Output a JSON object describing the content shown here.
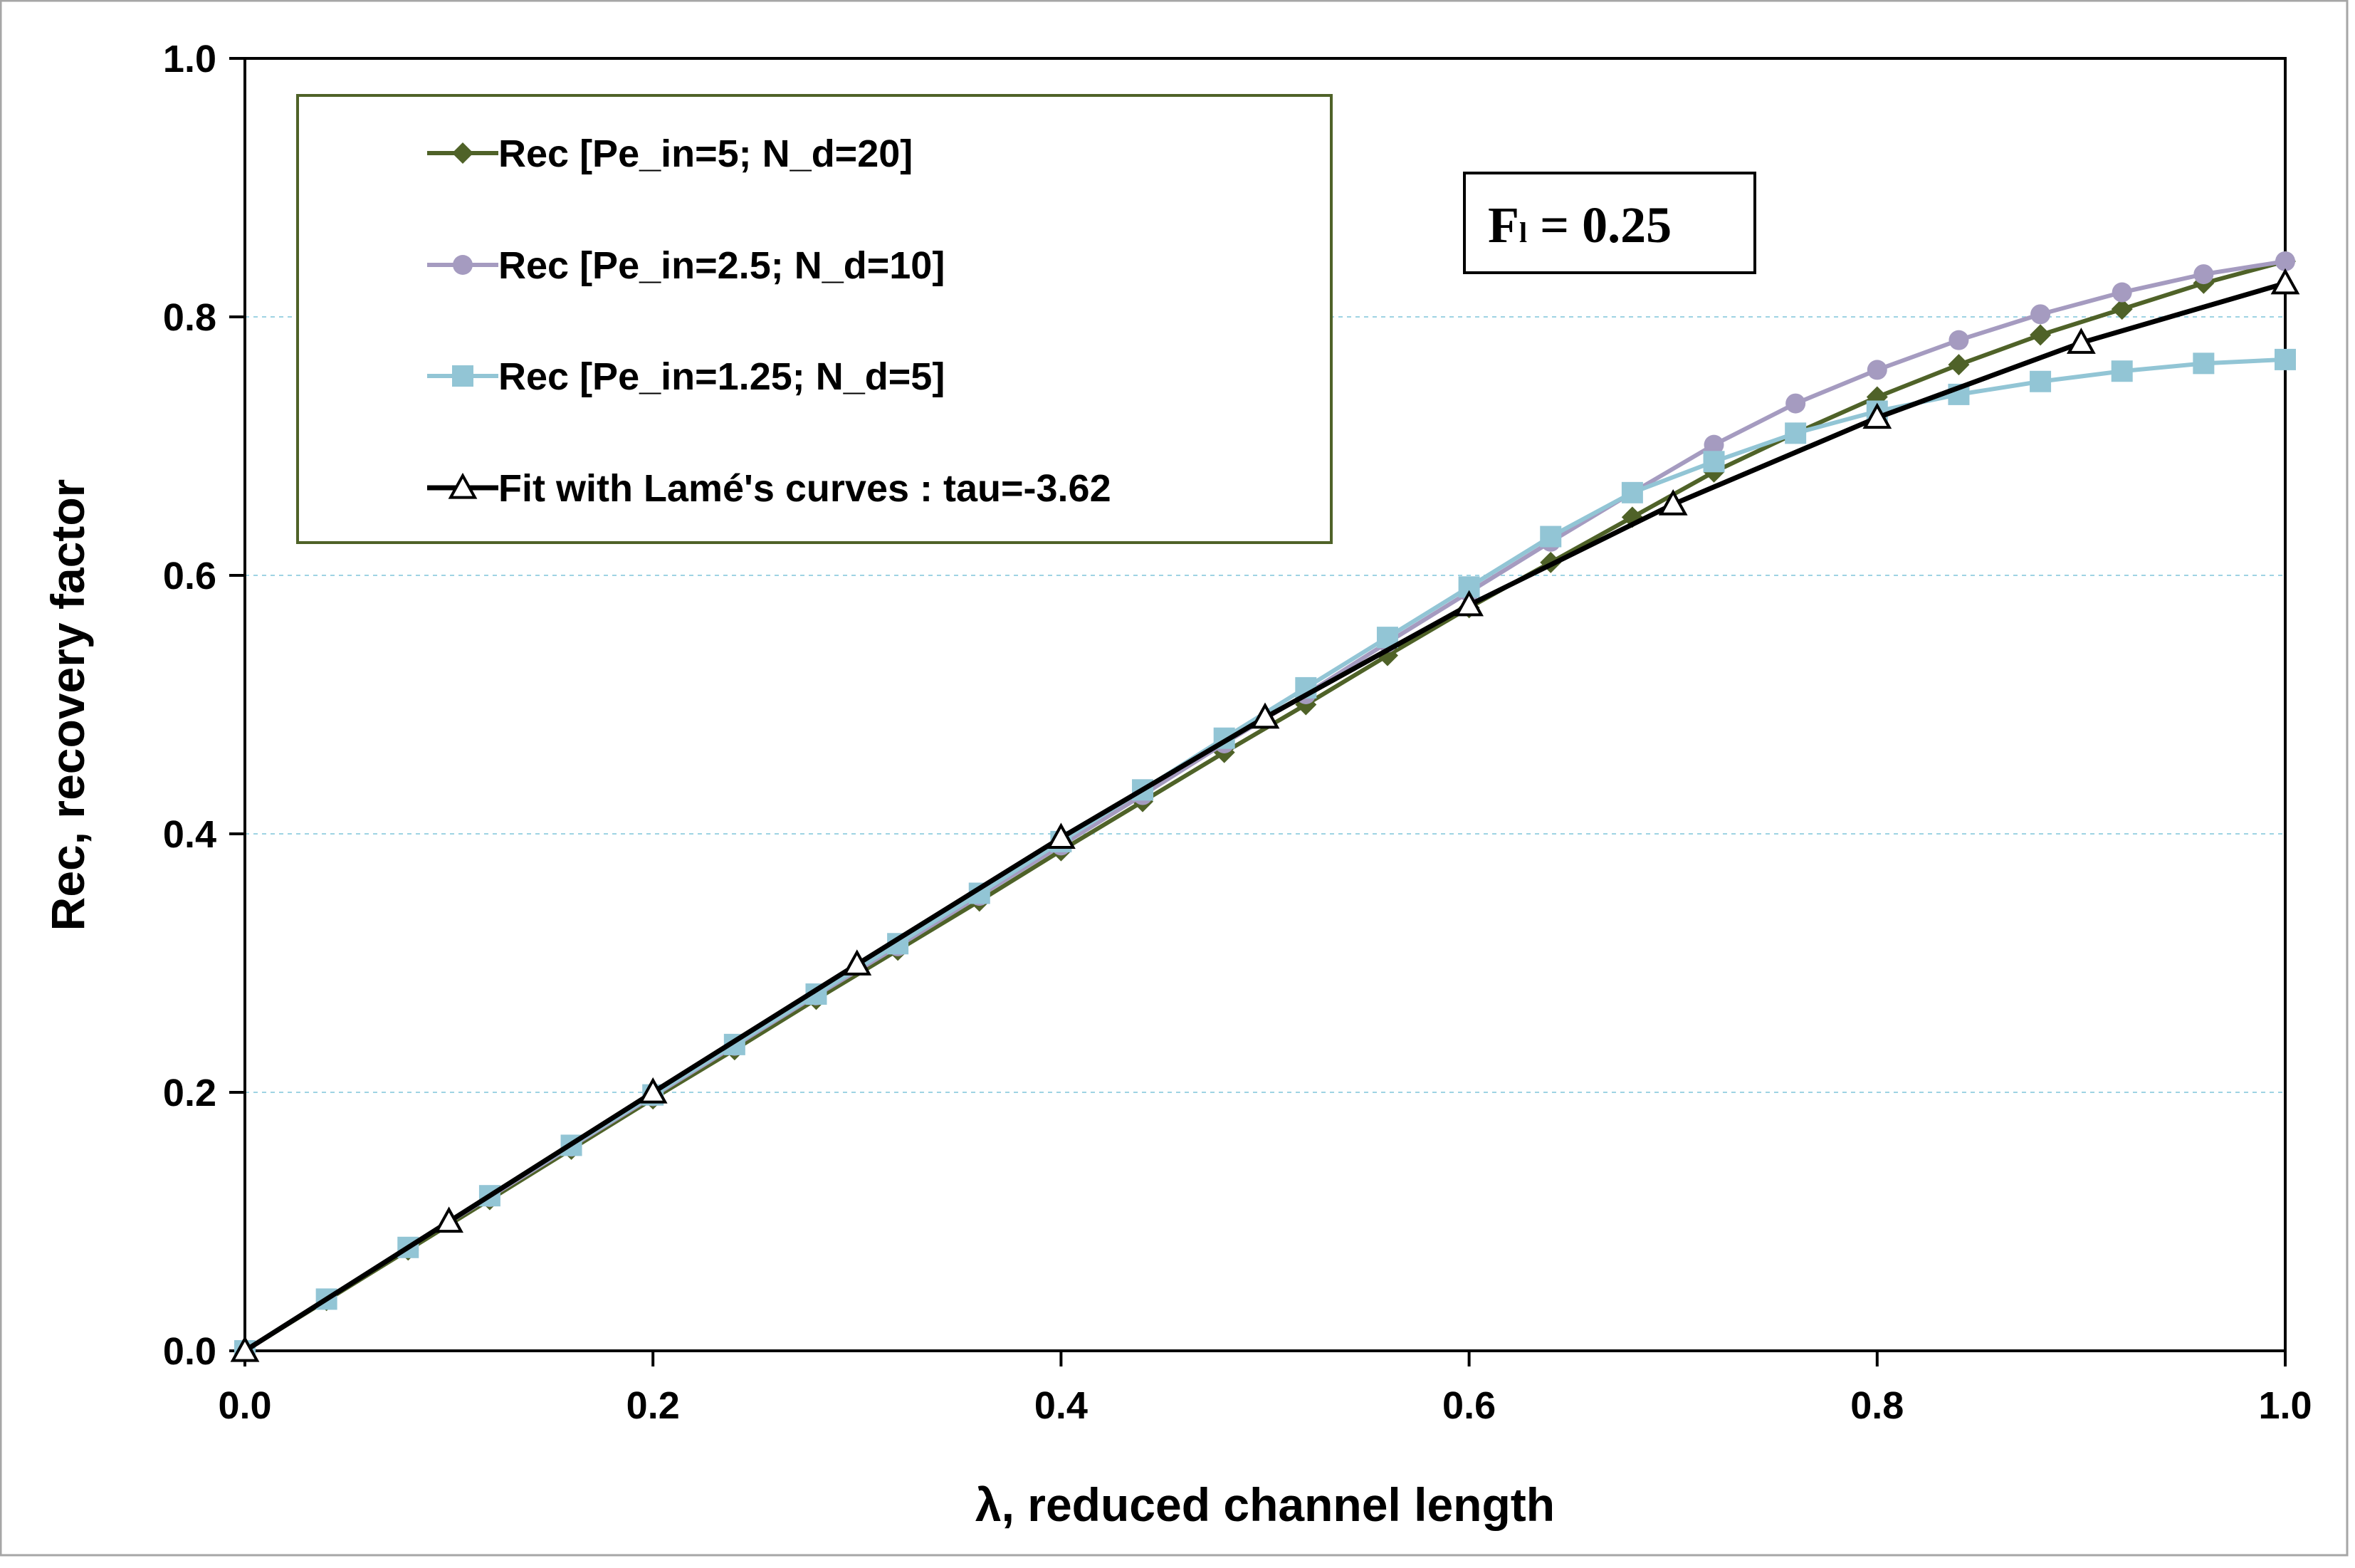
{
  "chart_data": {
    "type": "line",
    "xlabel": "λ, reduced channel length",
    "ylabel": "Rec, recovery factor",
    "xlim": [
      0.0,
      1.0
    ],
    "ylim": [
      0.0,
      1.0
    ],
    "x_ticks": [
      "0.0",
      "0.2",
      "0.4",
      "0.6",
      "0.8",
      "1.0"
    ],
    "y_ticks": [
      "0.0",
      "0.2",
      "0.4",
      "0.6",
      "0.8",
      "1.0"
    ],
    "grid": "horizontal dashed",
    "legend_position": "top-left",
    "annotation": {
      "main": "F",
      "sub": "l",
      "rest": " = 0.25"
    },
    "series": [
      {
        "name": "Rec  [Pe_in=5; N_d=20]",
        "color": "#4f6228",
        "marker": "diamond",
        "x": [
          0,
          0.04,
          0.08,
          0.12,
          0.16,
          0.2,
          0.24,
          0.28,
          0.32,
          0.36,
          0.4,
          0.44,
          0.48,
          0.52,
          0.56,
          0.6,
          0.64,
          0.68,
          0.72,
          0.76,
          0.8,
          0.84,
          0.88,
          0.92,
          0.96,
          1.0
        ],
        "y": [
          0,
          0.039,
          0.078,
          0.117,
          0.156,
          0.195,
          0.233,
          0.272,
          0.31,
          0.348,
          0.387,
          0.425,
          0.463,
          0.5,
          0.538,
          0.575,
          0.61,
          0.645,
          0.68,
          0.71,
          0.738,
          0.763,
          0.786,
          0.806,
          0.826,
          0.843
        ]
      },
      {
        "name": "Rec  [Pe_in=2.5; N_d=10]",
        "color": "#a59bc0",
        "marker": "circle",
        "x": [
          0,
          0.04,
          0.08,
          0.12,
          0.16,
          0.2,
          0.24,
          0.28,
          0.32,
          0.36,
          0.4,
          0.44,
          0.48,
          0.52,
          0.56,
          0.6,
          0.64,
          0.68,
          0.72,
          0.76,
          0.8,
          0.84,
          0.88,
          0.92,
          0.96,
          1.0
        ],
        "y": [
          0,
          0.04,
          0.08,
          0.119,
          0.158,
          0.197,
          0.236,
          0.275,
          0.313,
          0.352,
          0.391,
          0.43,
          0.47,
          0.508,
          0.548,
          0.587,
          0.626,
          0.664,
          0.701,
          0.733,
          0.759,
          0.782,
          0.802,
          0.819,
          0.833,
          0.843
        ]
      },
      {
        "name": "Rec  [Pe_in=1.25; N_d=5]",
        "color": "#92c5d5",
        "marker": "square",
        "x": [
          0,
          0.04,
          0.08,
          0.12,
          0.16,
          0.2,
          0.24,
          0.28,
          0.32,
          0.36,
          0.4,
          0.44,
          0.48,
          0.52,
          0.56,
          0.6,
          0.64,
          0.68,
          0.72,
          0.76,
          0.8,
          0.84,
          0.88,
          0.92,
          0.96,
          1.0
        ],
        "y": [
          0,
          0.04,
          0.08,
          0.12,
          0.159,
          0.198,
          0.237,
          0.276,
          0.315,
          0.354,
          0.394,
          0.434,
          0.474,
          0.513,
          0.552,
          0.591,
          0.63,
          0.664,
          0.688,
          0.71,
          0.727,
          0.74,
          0.75,
          0.758,
          0.764,
          0.767
        ]
      },
      {
        "name": "Fit with Lamé's curves : tau=-3.62",
        "color": "#000000",
        "marker": "triangle",
        "x": [
          0,
          0.1,
          0.2,
          0.3,
          0.4,
          0.5,
          0.6,
          0.7,
          0.8,
          0.9,
          1.0
        ],
        "y": [
          0,
          0.1,
          0.2,
          0.299,
          0.397,
          0.49,
          0.577,
          0.655,
          0.722,
          0.78,
          0.826
        ]
      }
    ]
  }
}
